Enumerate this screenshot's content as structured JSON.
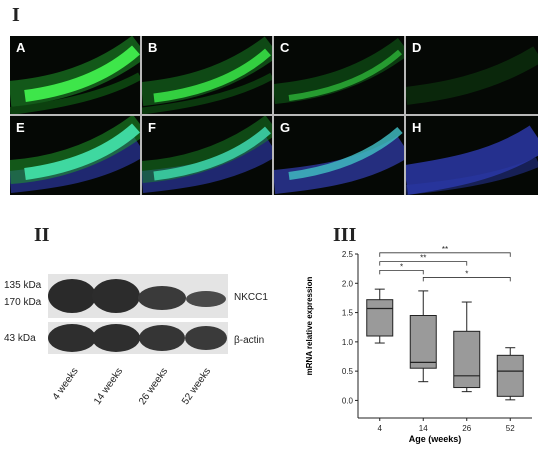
{
  "figure": {
    "section_labels": {
      "s1": "I",
      "s2": "II",
      "s3": "III"
    },
    "panels": [
      "A",
      "B",
      "C",
      "D",
      "E",
      "F",
      "G",
      "H"
    ],
    "panel_colors": {
      "green": "#2fd83a",
      "blue": "#4a5cff",
      "cyan": "#3fc6c8",
      "dark": "#050805"
    }
  },
  "western": {
    "markers": [
      "135 kDa",
      "170 kDa",
      "43 kDa"
    ],
    "bands": {
      "target": "NKCC1",
      "control": "β-actin"
    },
    "lanes": [
      "4 weeks",
      "14 weeks",
      "26 weeks",
      "52 weeks"
    ]
  },
  "chart_data": {
    "type": "box",
    "xlabel": "Age (weeks)",
    "ylabel": "mRNA relative expression",
    "categories": [
      "4",
      "14",
      "26",
      "52"
    ],
    "ylim": [
      -0.3,
      2.5
    ],
    "yticks": [
      "0.0",
      "0.5",
      "1.0",
      "1.5",
      "2.0",
      "2.5"
    ],
    "boxes": [
      {
        "x": "4",
        "min": 0.98,
        "q1": 1.1,
        "median": 1.57,
        "q3": 1.72,
        "max": 1.9
      },
      {
        "x": "14",
        "min": 0.32,
        "q1": 0.55,
        "median": 0.65,
        "q3": 1.45,
        "max": 1.87
      },
      {
        "x": "26",
        "min": 0.15,
        "q1": 0.22,
        "median": 0.42,
        "q3": 1.18,
        "max": 1.68
      },
      {
        "x": "52",
        "min": 0.01,
        "q1": 0.07,
        "median": 0.5,
        "q3": 0.77,
        "max": 0.9
      }
    ],
    "significance": [
      {
        "from": "4",
        "to": "14",
        "label": "*",
        "y": 2.22
      },
      {
        "from": "4",
        "to": "26",
        "label": "**",
        "y": 2.37
      },
      {
        "from": "4",
        "to": "52",
        "label": "**",
        "y": 2.52
      },
      {
        "from": "14",
        "to": "52",
        "label": "*",
        "y": 2.1
      }
    ],
    "box_color": "#9a9a9a"
  }
}
